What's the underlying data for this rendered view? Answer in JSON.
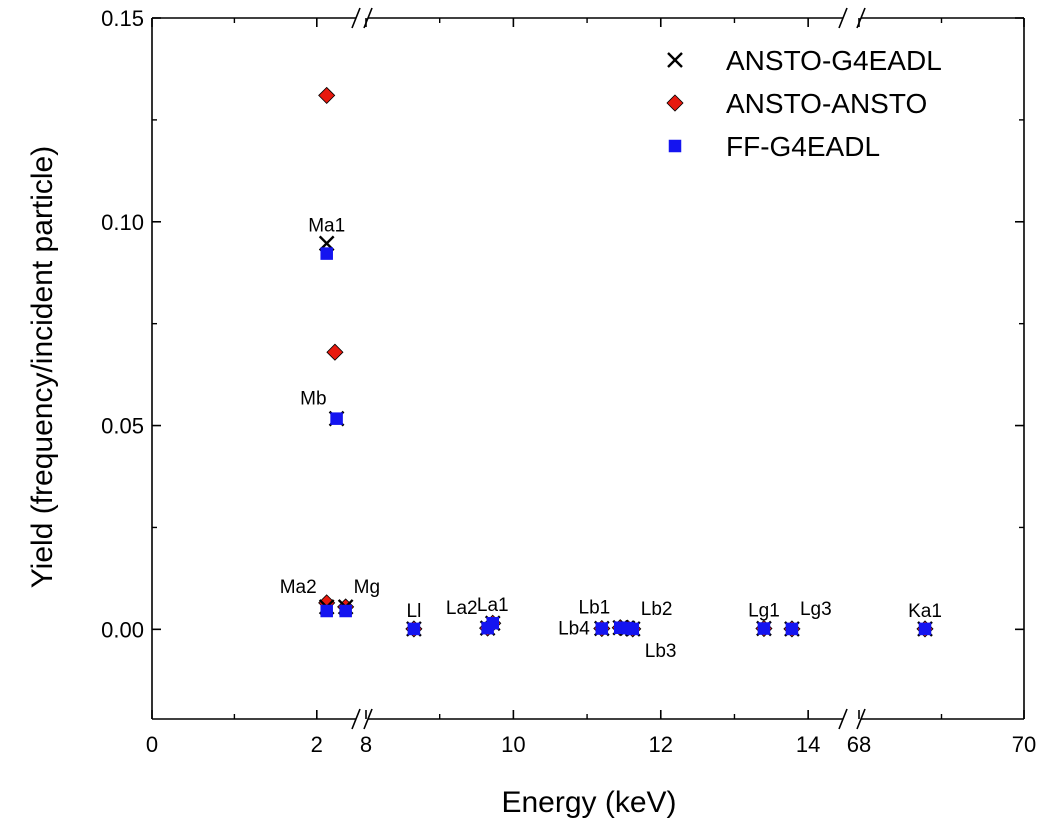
{
  "chart_data": {
    "type": "scatter",
    "xlabel": "Energy (keV)",
    "ylabel": "Yield (frequency/incident particle)",
    "ylim": [
      -0.022,
      0.15
    ],
    "y_ticks": [
      "0.00",
      "0.05",
      "0.10",
      "0.15"
    ],
    "x_axis": {
      "broken": true,
      "segments": [
        {
          "range": [
            0,
            2.5
          ],
          "ticks": [
            "0",
            "2"
          ]
        },
        {
          "range": [
            8,
            14.5
          ],
          "ticks": [
            "8",
            "10",
            "12",
            "14"
          ]
        },
        {
          "range": [
            68,
            70
          ],
          "ticks": [
            "68",
            "70"
          ]
        }
      ]
    },
    "legend_position": "top-right",
    "series": [
      {
        "name": "ANSTO-G4EADL",
        "marker": "x",
        "color": "#000000",
        "points": [
          {
            "x": 2.12,
            "y": 0.0947
          },
          {
            "x": 2.24,
            "y": 0.0517
          },
          {
            "x": 2.12,
            "y": 0.0055
          },
          {
            "x": 2.35,
            "y": 0.0055
          },
          {
            "x": 8.65,
            "y": 0.0001
          },
          {
            "x": 9.65,
            "y": 0.0003
          },
          {
            "x": 9.72,
            "y": 0.0015
          },
          {
            "x": 11.2,
            "y": 0.0002
          },
          {
            "x": 11.45,
            "y": 0.0004
          },
          {
            "x": 11.55,
            "y": 0.0003
          },
          {
            "x": 11.62,
            "y": 0.0001
          },
          {
            "x": 13.4,
            "y": 0.0002
          },
          {
            "x": 13.78,
            "y": 0.0001
          },
          {
            "x": 68.8,
            "y": 0.0001
          }
        ]
      },
      {
        "name": "ANSTO-ANSTO",
        "marker": "diamond",
        "color": "#e8190e",
        "points": [
          {
            "x": 2.12,
            "y": 0.131
          },
          {
            "x": 2.22,
            "y": 0.068
          },
          {
            "x": 2.12,
            "y": 0.0065
          },
          {
            "x": 2.35,
            "y": 0.0055
          },
          {
            "x": 8.65,
            "y": 0.0001
          },
          {
            "x": 9.65,
            "y": 0.0003
          },
          {
            "x": 9.72,
            "y": 0.0015
          },
          {
            "x": 11.2,
            "y": 0.0002
          },
          {
            "x": 11.45,
            "y": 0.0004
          },
          {
            "x": 11.55,
            "y": 0.0003
          },
          {
            "x": 11.62,
            "y": 0.0001
          },
          {
            "x": 13.4,
            "y": 0.0002
          },
          {
            "x": 13.78,
            "y": 0.0001
          },
          {
            "x": 68.8,
            "y": 0.0001
          }
        ]
      },
      {
        "name": "FF-G4EADL",
        "marker": "square",
        "color": "#1414f0",
        "points": [
          {
            "x": 2.12,
            "y": 0.0922
          },
          {
            "x": 2.24,
            "y": 0.0517
          },
          {
            "x": 2.12,
            "y": 0.0045
          },
          {
            "x": 2.35,
            "y": 0.0045
          },
          {
            "x": 8.65,
            "y": 0.0001
          },
          {
            "x": 9.65,
            "y": 0.0003
          },
          {
            "x": 9.72,
            "y": 0.0015
          },
          {
            "x": 11.2,
            "y": 0.0002
          },
          {
            "x": 11.45,
            "y": 0.0004
          },
          {
            "x": 11.55,
            "y": 0.0003
          },
          {
            "x": 11.62,
            "y": 0.0001
          },
          {
            "x": 13.4,
            "y": 0.0002
          },
          {
            "x": 13.78,
            "y": 0.0001
          },
          {
            "x": 68.8,
            "y": 0.0001
          }
        ]
      }
    ],
    "annotations": [
      {
        "text": "Ma1",
        "x": 2.12,
        "y": 0.0947,
        "anchor": "above"
      },
      {
        "text": "Mb",
        "x": 2.24,
        "y": 0.0517,
        "anchor": "above-left"
      },
      {
        "text": "Ma2",
        "x": 2.12,
        "y": 0.0055,
        "anchor": "above-left"
      },
      {
        "text": "Mg",
        "x": 2.35,
        "y": 0.0055,
        "anchor": "above-right"
      },
      {
        "text": "Ll",
        "x": 8.65,
        "y": 0.0001,
        "anchor": "above"
      },
      {
        "text": "La2",
        "x": 9.65,
        "y": 0.0003,
        "anchor": "above-left"
      },
      {
        "text": "La1",
        "x": 9.72,
        "y": 0.0015,
        "anchor": "above"
      },
      {
        "text": "Lb4",
        "x": 11.2,
        "y": 0.0002,
        "anchor": "left"
      },
      {
        "text": "Lb1",
        "x": 11.45,
        "y": 0.0004,
        "anchor": "above-left"
      },
      {
        "text": "Lb2",
        "x": 11.62,
        "y": 0.0001,
        "anchor": "above-right"
      },
      {
        "text": "Lb3",
        "x": 11.62,
        "y": 0.0001,
        "anchor": "below-right"
      },
      {
        "text": "Lg1",
        "x": 13.4,
        "y": 0.0002,
        "anchor": "above"
      },
      {
        "text": "Lg3",
        "x": 13.78,
        "y": 0.0001,
        "anchor": "above-right"
      },
      {
        "text": "Ka1",
        "x": 68.8,
        "y": 0.0001,
        "anchor": "above"
      }
    ]
  }
}
